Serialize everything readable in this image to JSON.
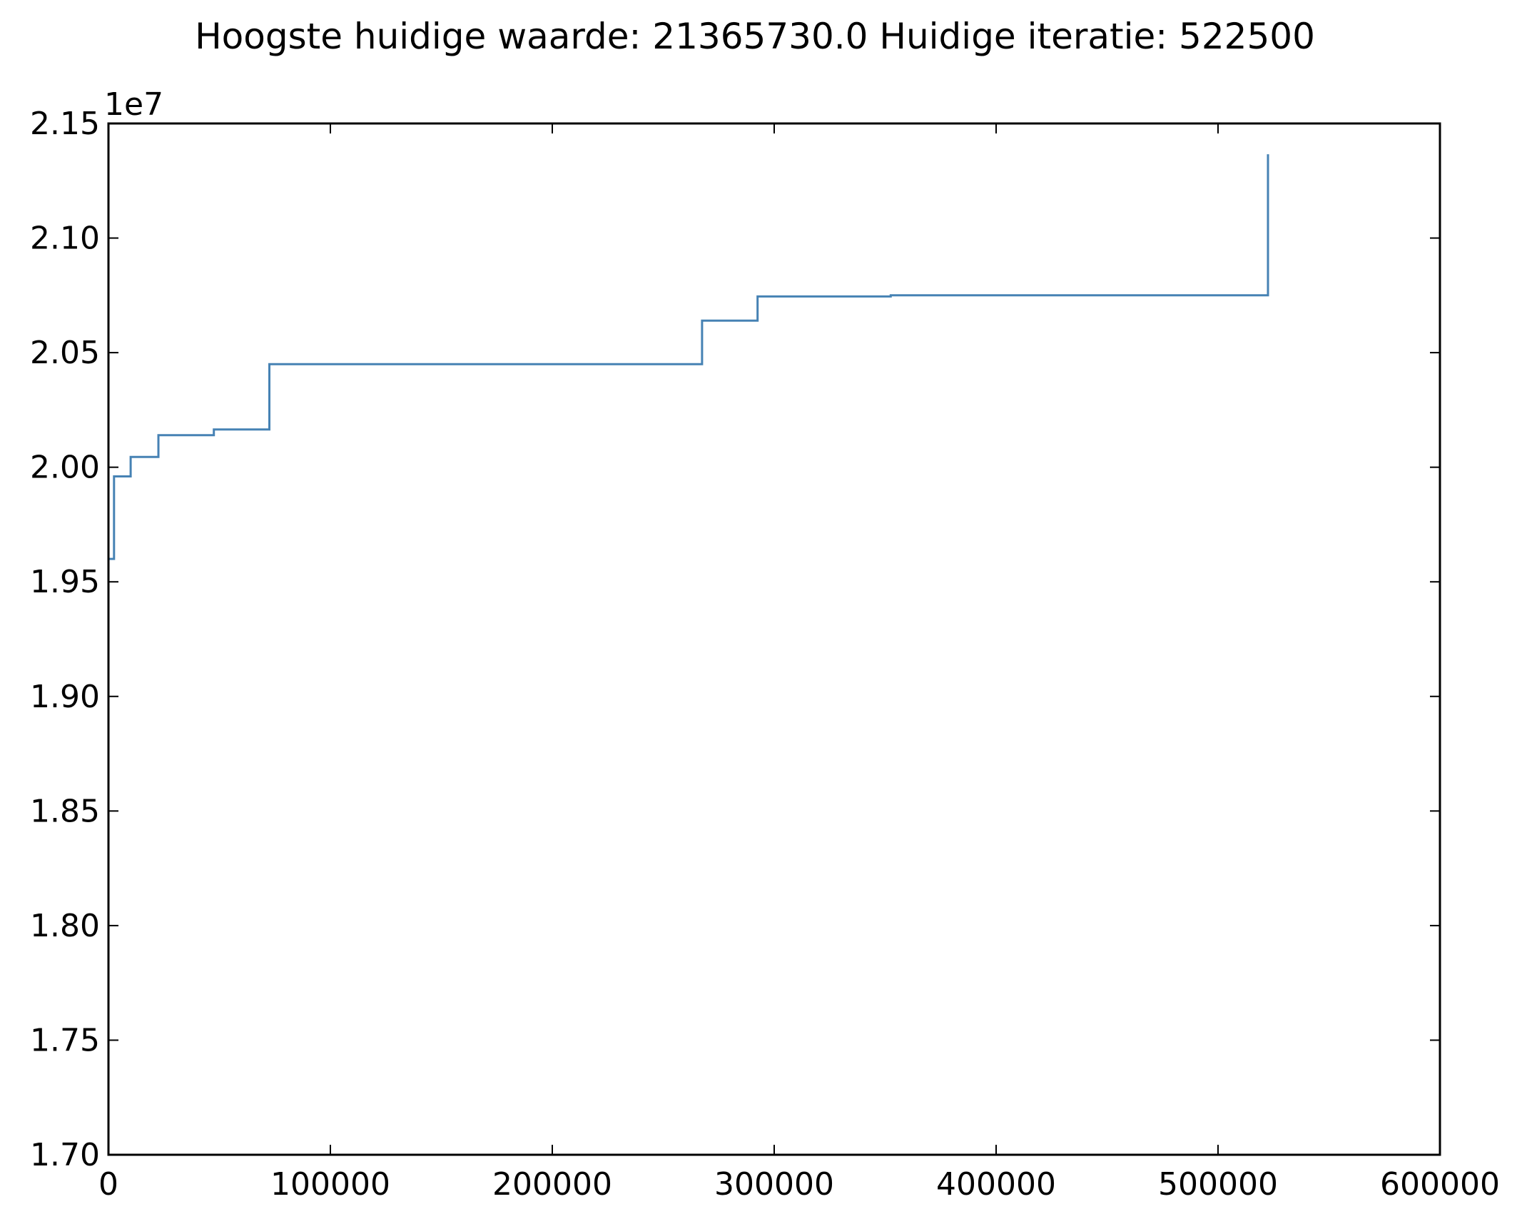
{
  "chart_data": {
    "type": "line",
    "title": "Hoogste huidige waarde: 21365730.0 Huidige iteratie: 522500",
    "xlabel": "",
    "ylabel": "",
    "xlim": [
      0,
      600000
    ],
    "ylim": [
      17000000,
      21500000
    ],
    "x_ticks": [
      0,
      100000,
      200000,
      300000,
      400000,
      500000,
      600000
    ],
    "x_tick_labels": [
      "0",
      "100000",
      "200000",
      "300000",
      "400000",
      "500000",
      "600000"
    ],
    "y_ticks": [
      17000000,
      17500000,
      18000000,
      18500000,
      19000000,
      19500000,
      20000000,
      20500000,
      21000000,
      21500000
    ],
    "y_tick_labels": [
      "1.70",
      "1.75",
      "1.80",
      "1.85",
      "1.90",
      "1.95",
      "2.00",
      "2.05",
      "2.10",
      "2.15"
    ],
    "y_offset_label": "1e7",
    "grid": false,
    "line_style": "steps-post",
    "series": [
      {
        "color": "#4682b4",
        "x": [
          0,
          2500,
          10000,
          22500,
          47500,
          72500,
          267500,
          292500,
          352500,
          522500
        ],
        "y": [
          19600000,
          19960000,
          20045000,
          20140000,
          20165000,
          20450000,
          20640000,
          20745000,
          20750000,
          21365730
        ]
      }
    ]
  }
}
